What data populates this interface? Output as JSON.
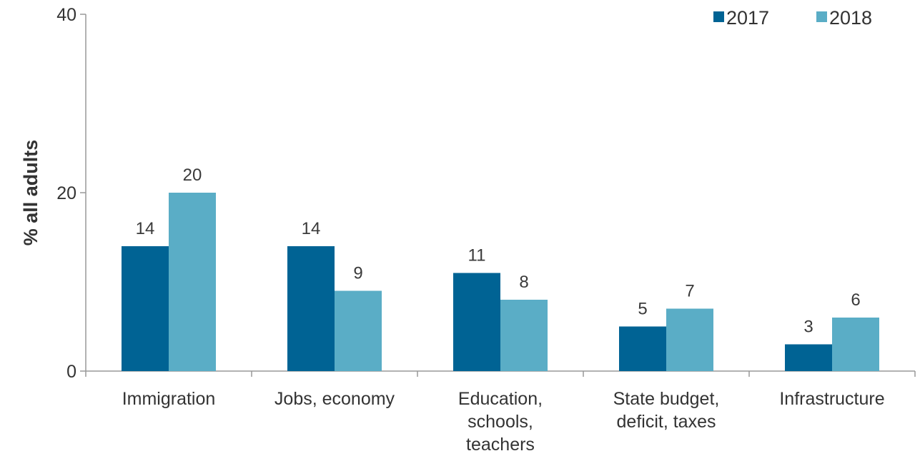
{
  "chart_data": {
    "type": "bar",
    "categories": [
      [
        "Immigration"
      ],
      [
        "Jobs, economy"
      ],
      [
        "Education,",
        "schools,",
        "teachers"
      ],
      [
        "State budget,",
        "deficit, taxes"
      ],
      [
        "Infrastructure"
      ]
    ],
    "series": [
      {
        "name": "2017",
        "color": "#006394",
        "values": [
          14,
          14,
          11,
          5,
          3
        ]
      },
      {
        "name": "2018",
        "color": "#5aadc6",
        "values": [
          20,
          9,
          8,
          7,
          6
        ]
      }
    ],
    "title": "",
    "xlabel": "",
    "ylabel": "% all adults",
    "ylim": [
      0,
      40
    ],
    "yticks": [
      0,
      20,
      40
    ],
    "grid": false,
    "legend_position": "top-right",
    "axis_color": "#999999"
  }
}
